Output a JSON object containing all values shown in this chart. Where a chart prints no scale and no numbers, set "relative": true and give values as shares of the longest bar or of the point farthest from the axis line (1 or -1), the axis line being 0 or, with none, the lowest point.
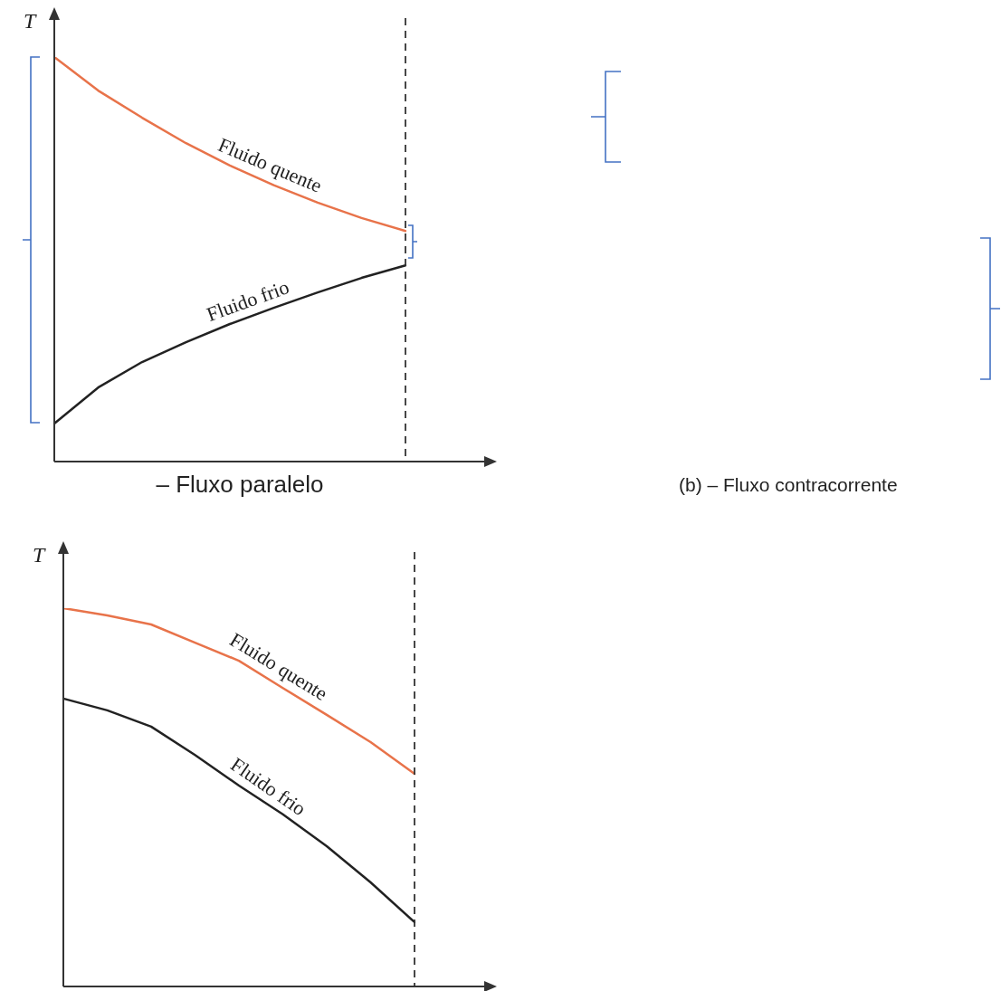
{
  "chart_data": [
    {
      "type": "line",
      "title": "– Fluxo paralelo",
      "ylabel": "T",
      "relative": true,
      "legend": false,
      "marker": "none",
      "line_style": "solid",
      "categories": [
        null,
        null,
        null,
        null,
        null,
        null,
        null,
        null,
        null
      ],
      "annotations": [
        "(b) – Fluxo contracorrente"
      ],
      "series": [
        {
          "name": "Fluido quente",
          "color": "#e8734a",
          "values": [
            1.0,
            0.917,
            0.85,
            0.787,
            0.732,
            0.683,
            0.64,
            0.602,
            0.57
          ]
        },
        {
          "name": "Fluido frio",
          "color": "#222222",
          "values": [
            0.094,
            0.183,
            0.246,
            0.295,
            0.34,
            0.38,
            0.418,
            0.454,
            0.485
          ]
        }
      ]
    },
    {
      "type": "line",
      "ylabel": "T",
      "relative": true,
      "legend": false,
      "marker": "none",
      "line_style": "solid",
      "categories": [
        null,
        null,
        null,
        null,
        null,
        null,
        null,
        null,
        null
      ],
      "series": [
        {
          "name": "Fluido quente",
          "color": "#e8734a",
          "values": [
            1.0,
            0.981,
            0.957,
            0.909,
            0.861,
            0.789,
            0.718,
            0.646,
            0.562
          ]
        },
        {
          "name": "Fluido frio",
          "color": "#222222",
          "values": [
            0.761,
            0.73,
            0.687,
            0.612,
            0.531,
            0.455,
            0.371,
            0.275,
            0.17
          ]
        }
      ]
    }
  ]
}
